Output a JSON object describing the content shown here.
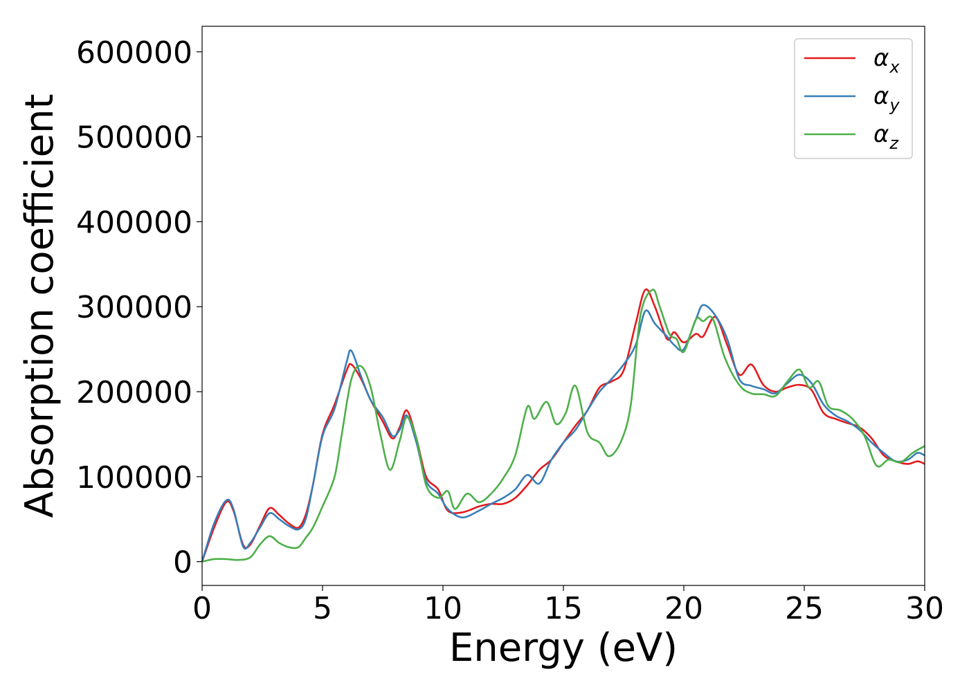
{
  "chart_data": {
    "type": "line",
    "xlabel": "Energy (eV)",
    "ylabel": "Absorption coefficient",
    "xlim": [
      0,
      30
    ],
    "ylim": [
      -28000,
      630000
    ],
    "xticks": [
      0,
      5,
      10,
      15,
      20,
      25,
      30
    ],
    "xtick_labels": [
      "0",
      "5",
      "10",
      "15",
      "20",
      "25",
      "30"
    ],
    "yticks": [
      0,
      100000,
      200000,
      300000,
      400000,
      500000,
      600000
    ],
    "ytick_labels": [
      "0",
      "100000",
      "200000",
      "300000",
      "400000",
      "500000",
      "600000"
    ],
    "grid": false,
    "legend_position": "top-right",
    "series": [
      {
        "name": "αx",
        "legend_base": "α",
        "legend_sub": "x",
        "color": "#e41a1c",
        "points": [
          [
            0,
            0
          ],
          [
            0.5,
            40000
          ],
          [
            1,
            70000
          ],
          [
            1.3,
            60000
          ],
          [
            1.7,
            20000
          ],
          [
            2,
            20000
          ],
          [
            2.4,
            42000
          ],
          [
            2.8,
            63000
          ],
          [
            3.2,
            55000
          ],
          [
            3.6,
            45000
          ],
          [
            4,
            40000
          ],
          [
            4.3,
            55000
          ],
          [
            4.6,
            90000
          ],
          [
            5,
            150000
          ],
          [
            5.5,
            185000
          ],
          [
            6,
            225000
          ],
          [
            6.2,
            232000
          ],
          [
            6.6,
            215000
          ],
          [
            7,
            190000
          ],
          [
            7.5,
            165000
          ],
          [
            7.9,
            145000
          ],
          [
            8.2,
            158000
          ],
          [
            8.5,
            178000
          ],
          [
            8.9,
            145000
          ],
          [
            9.3,
            100000
          ],
          [
            9.8,
            85000
          ],
          [
            10.2,
            60000
          ],
          [
            10.8,
            58000
          ],
          [
            11.5,
            65000
          ],
          [
            12,
            68000
          ],
          [
            12.5,
            68000
          ],
          [
            13,
            75000
          ],
          [
            13.5,
            90000
          ],
          [
            14,
            108000
          ],
          [
            14.5,
            120000
          ],
          [
            15,
            140000
          ],
          [
            15.5,
            160000
          ],
          [
            16,
            178000
          ],
          [
            16.5,
            205000
          ],
          [
            17,
            212000
          ],
          [
            17.5,
            225000
          ],
          [
            18,
            280000
          ],
          [
            18.4,
            320000
          ],
          [
            18.8,
            300000
          ],
          [
            19.3,
            262000
          ],
          [
            19.6,
            270000
          ],
          [
            20,
            258000
          ],
          [
            20.5,
            268000
          ],
          [
            20.8,
            265000
          ],
          [
            21.3,
            288000
          ],
          [
            21.8,
            255000
          ],
          [
            22.3,
            220000
          ],
          [
            22.8,
            232000
          ],
          [
            23.3,
            208000
          ],
          [
            23.8,
            200000
          ],
          [
            24.3,
            205000
          ],
          [
            24.8,
            208000
          ],
          [
            25.3,
            202000
          ],
          [
            25.8,
            175000
          ],
          [
            26.3,
            168000
          ],
          [
            26.8,
            163000
          ],
          [
            27.3,
            158000
          ],
          [
            27.8,
            145000
          ],
          [
            28.3,
            125000
          ],
          [
            28.8,
            118000
          ],
          [
            29.3,
            115000
          ],
          [
            29.7,
            118000
          ],
          [
            30,
            115000
          ]
        ]
      },
      {
        "name": "αy",
        "legend_base": "α",
        "legend_sub": "y",
        "color": "#377eb8",
        "points": [
          [
            0,
            0
          ],
          [
            0.5,
            45000
          ],
          [
            1,
            72000
          ],
          [
            1.3,
            62000
          ],
          [
            1.7,
            18000
          ],
          [
            2,
            22000
          ],
          [
            2.4,
            40000
          ],
          [
            2.8,
            57000
          ],
          [
            3.2,
            50000
          ],
          [
            3.6,
            42000
          ],
          [
            4,
            38000
          ],
          [
            4.3,
            50000
          ],
          [
            4.6,
            90000
          ],
          [
            5,
            148000
          ],
          [
            5.5,
            180000
          ],
          [
            6,
            235000
          ],
          [
            6.2,
            248000
          ],
          [
            6.6,
            218000
          ],
          [
            7,
            190000
          ],
          [
            7.5,
            170000
          ],
          [
            7.9,
            148000
          ],
          [
            8.2,
            155000
          ],
          [
            8.5,
            172000
          ],
          [
            8.9,
            140000
          ],
          [
            9.3,
            95000
          ],
          [
            9.8,
            80000
          ],
          [
            10.2,
            62000
          ],
          [
            10.8,
            52000
          ],
          [
            11.5,
            60000
          ],
          [
            12,
            68000
          ],
          [
            12.5,
            75000
          ],
          [
            13,
            85000
          ],
          [
            13.5,
            102000
          ],
          [
            14,
            92000
          ],
          [
            14.5,
            120000
          ],
          [
            15,
            140000
          ],
          [
            15.5,
            155000
          ],
          [
            16,
            178000
          ],
          [
            16.5,
            200000
          ],
          [
            17,
            215000
          ],
          [
            17.5,
            232000
          ],
          [
            18,
            255000
          ],
          [
            18.4,
            295000
          ],
          [
            18.8,
            280000
          ],
          [
            19.3,
            265000
          ],
          [
            19.6,
            255000
          ],
          [
            20,
            250000
          ],
          [
            20.5,
            285000
          ],
          [
            20.8,
            302000
          ],
          [
            21.3,
            290000
          ],
          [
            21.8,
            262000
          ],
          [
            22.3,
            215000
          ],
          [
            22.8,
            207000
          ],
          [
            23.3,
            203000
          ],
          [
            23.8,
            198000
          ],
          [
            24.3,
            210000
          ],
          [
            24.8,
            220000
          ],
          [
            25.3,
            210000
          ],
          [
            25.8,
            185000
          ],
          [
            26.3,
            172000
          ],
          [
            26.8,
            165000
          ],
          [
            27.3,
            155000
          ],
          [
            27.8,
            140000
          ],
          [
            28.3,
            128000
          ],
          [
            28.8,
            118000
          ],
          [
            29.3,
            120000
          ],
          [
            29.7,
            128000
          ],
          [
            30,
            125000
          ]
        ]
      },
      {
        "name": "αz",
        "legend_base": "α",
        "legend_sub": "z",
        "color": "#4daf4a",
        "points": [
          [
            0,
            0
          ],
          [
            0.5,
            3000
          ],
          [
            1,
            3000
          ],
          [
            1.5,
            2000
          ],
          [
            2,
            5000
          ],
          [
            2.4,
            20000
          ],
          [
            2.8,
            30000
          ],
          [
            3.2,
            22000
          ],
          [
            3.6,
            17000
          ],
          [
            4,
            17000
          ],
          [
            4.3,
            28000
          ],
          [
            4.6,
            40000
          ],
          [
            5,
            65000
          ],
          [
            5.5,
            100000
          ],
          [
            5.8,
            150000
          ],
          [
            6.2,
            215000
          ],
          [
            6.6,
            230000
          ],
          [
            7,
            205000
          ],
          [
            7.4,
            150000
          ],
          [
            7.8,
            108000
          ],
          [
            8.2,
            142000
          ],
          [
            8.5,
            170000
          ],
          [
            8.9,
            145000
          ],
          [
            9.3,
            90000
          ],
          [
            9.8,
            75000
          ],
          [
            10.2,
            83000
          ],
          [
            10.5,
            62000
          ],
          [
            11,
            80000
          ],
          [
            11.5,
            70000
          ],
          [
            12,
            80000
          ],
          [
            12.5,
            98000
          ],
          [
            13,
            125000
          ],
          [
            13.5,
            182000
          ],
          [
            13.8,
            168000
          ],
          [
            14.3,
            188000
          ],
          [
            14.7,
            162000
          ],
          [
            15.1,
            175000
          ],
          [
            15.5,
            207000
          ],
          [
            16,
            152000
          ],
          [
            16.5,
            140000
          ],
          [
            16.9,
            124000
          ],
          [
            17.4,
            142000
          ],
          [
            17.8,
            185000
          ],
          [
            18.2,
            290000
          ],
          [
            18.7,
            320000
          ],
          [
            19,
            300000
          ],
          [
            19.4,
            268000
          ],
          [
            19.7,
            262000
          ],
          [
            20,
            247000
          ],
          [
            20.5,
            285000
          ],
          [
            20.8,
            283000
          ],
          [
            21.2,
            286000
          ],
          [
            21.7,
            240000
          ],
          [
            22.3,
            208000
          ],
          [
            22.8,
            198000
          ],
          [
            23.3,
            197000
          ],
          [
            23.8,
            195000
          ],
          [
            24.3,
            212000
          ],
          [
            24.8,
            226000
          ],
          [
            25.2,
            205000
          ],
          [
            25.6,
            212000
          ],
          [
            26,
            183000
          ],
          [
            26.5,
            178000
          ],
          [
            27,
            168000
          ],
          [
            27.5,
            148000
          ],
          [
            28,
            113000
          ],
          [
            28.5,
            120000
          ],
          [
            29,
            117000
          ],
          [
            29.5,
            128000
          ],
          [
            30,
            136000
          ]
        ]
      }
    ]
  }
}
